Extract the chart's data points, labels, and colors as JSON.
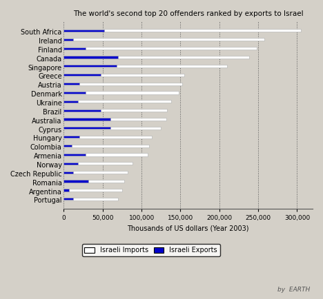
{
  "title": "The world's second top 20 offenders ranked by exports to Israel",
  "xlabel": "Thousands of US dollars (Year 2003)",
  "countries": [
    "South Africa",
    "Ireland",
    "Finland",
    "Canada",
    "Singapore",
    "Greece",
    "Austria",
    "Denmark",
    "Ukraine",
    "Brazil",
    "Australia",
    "Cyprus",
    "Hungary",
    "Colombia",
    "Armenia",
    "Norway",
    "Czech Republic",
    "Romania",
    "Argentina",
    "Portugal"
  ],
  "imports": [
    305000,
    258000,
    248000,
    238000,
    210000,
    155000,
    152000,
    148000,
    138000,
    133000,
    132000,
    125000,
    113000,
    110000,
    108000,
    88000,
    82000,
    78000,
    75000,
    70000
  ],
  "exports": [
    52000,
    12000,
    28000,
    70000,
    68000,
    48000,
    20000,
    28000,
    18000,
    48000,
    60000,
    60000,
    20000,
    10000,
    28000,
    18000,
    12000,
    32000,
    7000,
    12000
  ],
  "bar_color_imports": "#ffffff",
  "bar_color_exports": "#0000cc",
  "bar_edgecolor": "#aaaaaa",
  "background_color": "#d4d0c8",
  "xlim": [
    0,
    320000
  ],
  "xticks": [
    0,
    50000,
    100000,
    150000,
    200000,
    250000,
    300000
  ],
  "xticklabels": [
    "0",
    "50,000",
    "100,000",
    "150,000",
    "200,000",
    "250,000",
    "300,000"
  ],
  "legend_imports": "Israeli Imports",
  "legend_exports": "Israeli Exports",
  "watermark": "by  EARTH"
}
